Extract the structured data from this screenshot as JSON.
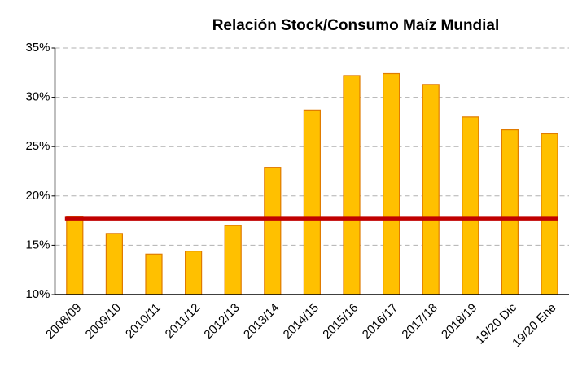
{
  "chart_data": {
    "type": "bar",
    "title": "Relación Stock/Consumo Maíz Mundial",
    "categories": [
      "2008/09",
      "2009/10",
      "2010/11",
      "2011/12",
      "2012/13",
      "2013/14",
      "2014/15",
      "2015/16",
      "2016/17",
      "2017/18",
      "2018/19",
      "19/20 Dic",
      "19/20 Ene"
    ],
    "values": [
      17.9,
      16.2,
      14.1,
      14.4,
      17.0,
      22.9,
      28.7,
      32.2,
      32.4,
      31.3,
      28.0,
      26.7,
      26.3
    ],
    "color": "#FFC000",
    "edge_color": "#E07B00",
    "reference_line": 17.7,
    "reference_color": "#C00000",
    "ylim": [
      10,
      35
    ],
    "yticks": [
      {
        "value": 10,
        "label": "10%"
      },
      {
        "value": 15,
        "label": "15%"
      },
      {
        "value": 20,
        "label": "20%"
      },
      {
        "value": 25,
        "label": "25%"
      },
      {
        "value": 30,
        "label": "30%"
      },
      {
        "value": 35,
        "label": "35%"
      }
    ],
    "grid": true
  }
}
